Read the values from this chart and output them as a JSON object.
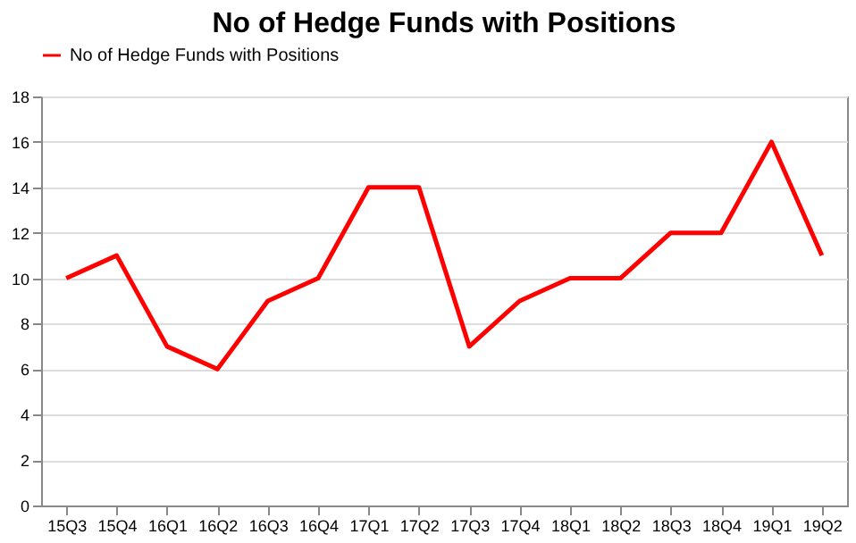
{
  "chart_data": {
    "type": "line",
    "title": "No of Hedge Funds with Positions",
    "categories": [
      "15Q3",
      "15Q4",
      "16Q1",
      "16Q2",
      "16Q3",
      "16Q4",
      "17Q1",
      "17Q2",
      "17Q3",
      "17Q4",
      "18Q1",
      "18Q2",
      "18Q3",
      "18Q4",
      "19Q1",
      "19Q2"
    ],
    "series": [
      {
        "name": "No of Hedge Funds with Positions",
        "color": "#ff0000",
        "values": [
          10,
          11,
          7,
          6,
          9,
          10,
          14,
          14,
          7,
          9,
          10,
          10,
          12,
          12,
          16,
          11
        ]
      }
    ],
    "ylim": [
      0,
      18
    ],
    "yticks": [
      0,
      2,
      4,
      6,
      8,
      10,
      12,
      14,
      16,
      18
    ],
    "grid": "y",
    "legend": "top",
    "marker": "none",
    "line_style": "solid"
  }
}
